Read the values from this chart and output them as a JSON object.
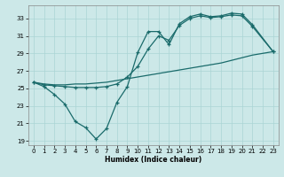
{
  "xlabel": "Humidex (Indice chaleur)",
  "bg_color": "#cce8e8",
  "grid_color": "#aad4d4",
  "line_color": "#1a6b6b",
  "xlim": [
    -0.5,
    23.5
  ],
  "ylim": [
    18.5,
    34.5
  ],
  "yticks": [
    19,
    21,
    23,
    25,
    27,
    29,
    31,
    33
  ],
  "xticks": [
    0,
    1,
    2,
    3,
    4,
    5,
    6,
    7,
    8,
    9,
    10,
    11,
    12,
    13,
    14,
    15,
    16,
    17,
    18,
    19,
    20,
    21,
    22,
    23
  ],
  "curve1_x": [
    0,
    1,
    2,
    3,
    4,
    5,
    6,
    7,
    8,
    9,
    10,
    11,
    12,
    13,
    14,
    15,
    16,
    17,
    18,
    19,
    20,
    21,
    23
  ],
  "curve1_y": [
    25.7,
    25.2,
    24.3,
    23.2,
    21.2,
    20.5,
    19.2,
    20.4,
    23.4,
    25.2,
    29.1,
    31.5,
    31.5,
    30.0,
    32.4,
    33.2,
    33.5,
    33.2,
    33.3,
    33.6,
    33.5,
    32.3,
    29.2
  ],
  "curve2_x": [
    0,
    1,
    2,
    3,
    4,
    5,
    6,
    7,
    8,
    9,
    10,
    11,
    12,
    13,
    14,
    15,
    16,
    17,
    18,
    19,
    20,
    21,
    23
  ],
  "curve2_y": [
    25.7,
    25.4,
    25.3,
    25.2,
    25.1,
    25.1,
    25.1,
    25.2,
    25.5,
    26.3,
    27.5,
    29.5,
    31.0,
    30.5,
    32.2,
    33.0,
    33.3,
    33.1,
    33.2,
    33.4,
    33.3,
    32.1,
    29.2
  ],
  "curve3_x": [
    0,
    1,
    2,
    3,
    4,
    5,
    6,
    7,
    8,
    9,
    10,
    11,
    12,
    13,
    14,
    15,
    16,
    17,
    18,
    19,
    20,
    21,
    22,
    23
  ],
  "curve3_y": [
    25.7,
    25.5,
    25.4,
    25.4,
    25.5,
    25.5,
    25.6,
    25.7,
    25.9,
    26.1,
    26.3,
    26.5,
    26.7,
    26.9,
    27.1,
    27.3,
    27.5,
    27.7,
    27.9,
    28.2,
    28.5,
    28.8,
    29.0,
    29.2
  ]
}
